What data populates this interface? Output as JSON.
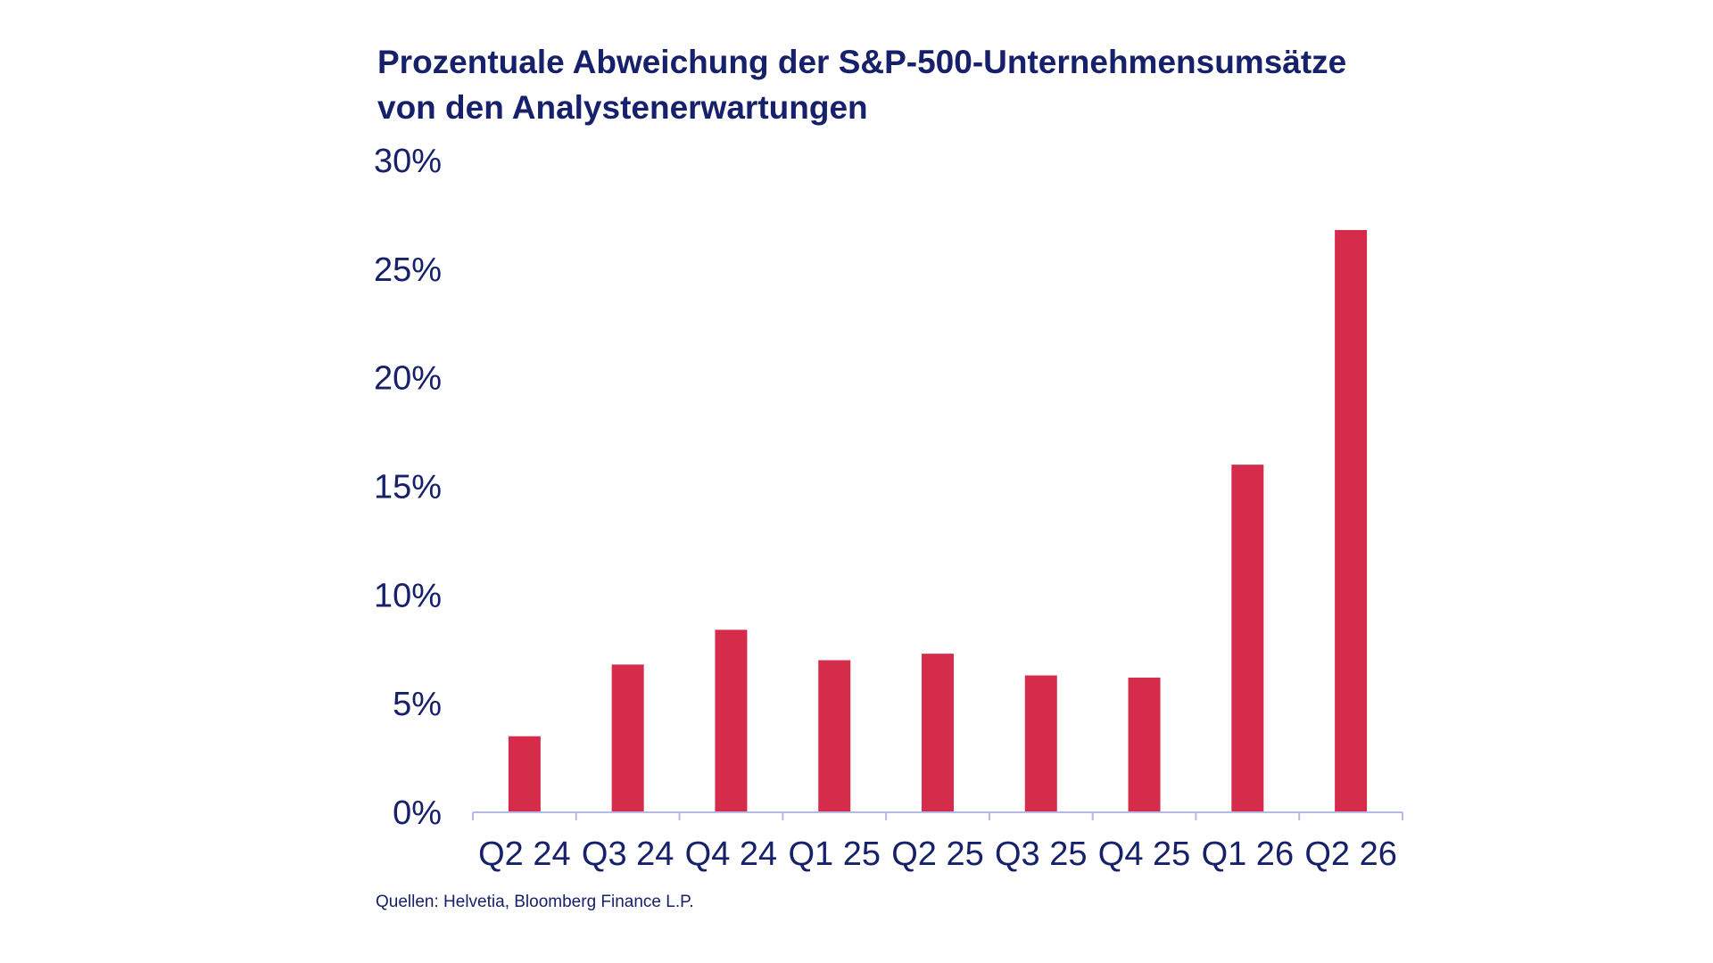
{
  "chart_data": {
    "type": "bar",
    "title": "Prozentuale Abweichung der S&P-500-Unternehmensumsätze",
    "subtitle": "von den Analystenerwartungen",
    "categories": [
      "Q2 24",
      "Q3 24",
      "Q4 24",
      "Q1 25",
      "Q2 25",
      "Q3 25",
      "Q4 25",
      "Q1 26",
      "Q2 26"
    ],
    "values": [
      3.5,
      6.8,
      8.4,
      7.0,
      7.3,
      6.3,
      6.2,
      16.0,
      26.8
    ],
    "ylim": [
      0,
      30
    ],
    "yticks": [
      0,
      5,
      10,
      15,
      20,
      25,
      30
    ],
    "ytick_labels": [
      "0%",
      "5%",
      "10%",
      "15%",
      "20%",
      "25%",
      "30%"
    ],
    "xlabel": "",
    "ylabel": "",
    "grid": false,
    "bar_color": "#d42c4a",
    "axis_color": "#b5b9e6",
    "text_color": "#16206b",
    "source": "Quellen: Helvetia, Bloomberg Finance L.P."
  }
}
